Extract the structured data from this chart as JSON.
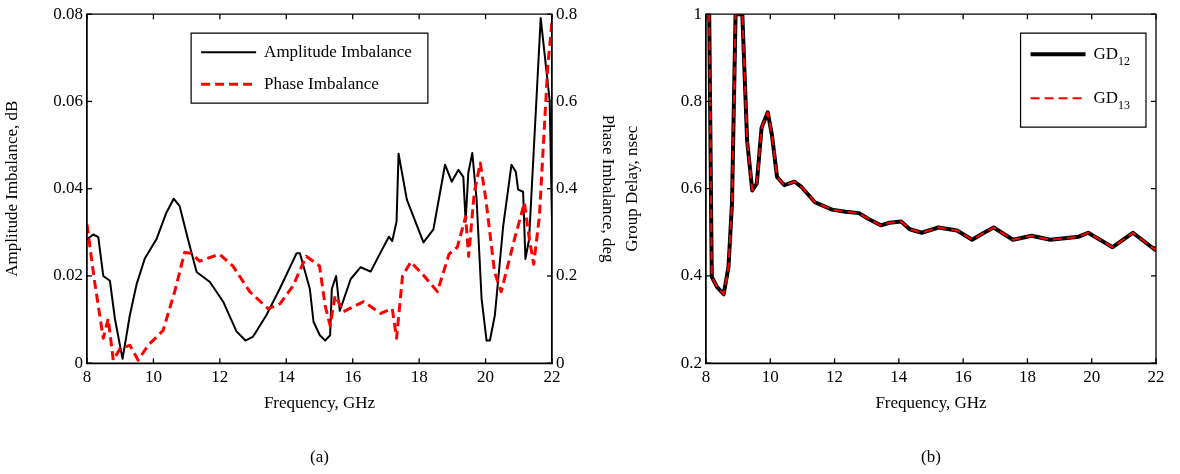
{
  "chart_data": [
    {
      "type": "line",
      "xlabel": "Frequency, GHz",
      "ylabel": "Amplitude Imbalance, dB",
      "y2label": "Phase Imbalance, deg",
      "annotations": [
        "(a)"
      ],
      "xlim": [
        8,
        22
      ],
      "xticks": [
        8,
        10,
        12,
        14,
        16,
        18,
        20,
        22
      ],
      "ylim": [
        0,
        0.08
      ],
      "yticks": [
        {
          "value": 0,
          "label": "0"
        },
        {
          "value": 0.02,
          "label": "0.02"
        },
        {
          "value": 0.04,
          "label": "0.04"
        },
        {
          "value": 0.06,
          "label": "0.06"
        },
        {
          "value": 0.08,
          "label": "0.08"
        }
      ],
      "y2lim": [
        0,
        0.8
      ],
      "y2ticks": [
        {
          "value": 0,
          "label": "0"
        },
        {
          "value": 0.2,
          "label": "0.2"
        },
        {
          "value": 0.4,
          "label": "0.4"
        },
        {
          "value": 0.6,
          "label": "0.6"
        },
        {
          "value": 0.8,
          "label": "0.8"
        }
      ],
      "legend": "top",
      "marker": "none",
      "grid": false,
      "series": [
        {
          "name": "Amplitude Imbalance",
          "color": "#000000",
          "line_style": "solid",
          "x": [
            8.0,
            8.19,
            8.34,
            8.49,
            8.69,
            8.84,
            9.07,
            9.29,
            9.49,
            9.74,
            10.09,
            10.39,
            10.61,
            10.79,
            11.04,
            11.3,
            11.7,
            12.1,
            12.5,
            12.77,
            13.0,
            13.4,
            13.8,
            14.31,
            14.41,
            14.71,
            14.82,
            15.01,
            15.17,
            15.32,
            15.37,
            15.5,
            15.61,
            15.94,
            16.24,
            16.54,
            16.84,
            17.09,
            17.19,
            17.32,
            17.38,
            17.63,
            18.13,
            18.43,
            18.78,
            18.98,
            19.18,
            19.33,
            19.4,
            19.48,
            19.6,
            19.73,
            19.88,
            20.03,
            20.13,
            20.28,
            20.53,
            20.78,
            20.91,
            20.98,
            21.13,
            21.2,
            21.31,
            21.66,
            21.93,
            22.0
          ],
          "values": [
            0.0284,
            0.0295,
            0.0289,
            0.02,
            0.0189,
            0.0102,
            0.001,
            0.011,
            0.018,
            0.024,
            0.0284,
            0.0345,
            0.0377,
            0.036,
            0.0284,
            0.0209,
            0.0186,
            0.0141,
            0.0073,
            0.0052,
            0.0061,
            0.011,
            0.017,
            0.0252,
            0.0252,
            0.017,
            0.0095,
            0.0064,
            0.0052,
            0.0064,
            0.017,
            0.02,
            0.012,
            0.0193,
            0.022,
            0.021,
            0.0254,
            0.029,
            0.028,
            0.0325,
            0.048,
            0.0375,
            0.0277,
            0.0307,
            0.0455,
            0.0416,
            0.0443,
            0.0427,
            0.0325,
            0.0436,
            0.0482,
            0.0375,
            0.0148,
            0.0052,
            0.0052,
            0.011,
            0.0314,
            0.0455,
            0.0439,
            0.0398,
            0.0393,
            0.0239,
            0.0284,
            0.0791,
            0.0602,
            0.0323
          ]
        },
        {
          "name": "Phase Imbalance",
          "color": "#ff0000",
          "line_style": "dashed",
          "axis": "y2",
          "x": [
            8.0,
            8.23,
            8.49,
            8.64,
            8.79,
            9.0,
            9.29,
            9.54,
            9.84,
            10.29,
            10.64,
            10.94,
            11.14,
            11.39,
            11.99,
            12.39,
            12.9,
            13.45,
            13.81,
            14.2,
            14.6,
            15.0,
            15.17,
            15.32,
            15.47,
            15.72,
            16.33,
            16.84,
            17.19,
            17.32,
            17.5,
            17.75,
            18.15,
            18.55,
            18.9,
            19.15,
            19.4,
            19.49,
            19.66,
            19.84,
            20.01,
            20.27,
            20.47,
            20.87,
            21.17,
            21.32,
            21.45,
            21.62,
            21.87,
            22.0
          ],
          "values": [
            0.318,
            0.186,
            0.057,
            0.102,
            0.007,
            0.034,
            0.041,
            0.007,
            0.041,
            0.075,
            0.164,
            0.254,
            0.252,
            0.234,
            0.25,
            0.223,
            0.164,
            0.125,
            0.136,
            0.177,
            0.245,
            0.223,
            0.132,
            0.086,
            0.155,
            0.118,
            0.141,
            0.114,
            0.125,
            0.057,
            0.2,
            0.232,
            0.2,
            0.164,
            0.25,
            0.266,
            0.336,
            0.245,
            0.391,
            0.459,
            0.375,
            0.209,
            0.164,
            0.284,
            0.368,
            0.284,
            0.227,
            0.336,
            0.677,
            0.784
          ]
        }
      ]
    },
    {
      "type": "line",
      "xlabel": "Frequency, GHz",
      "ylabel": "Group Delay, nsec",
      "annotations": [
        "(b)"
      ],
      "xlim": [
        8,
        22
      ],
      "xticks": [
        8,
        10,
        12,
        14,
        16,
        18,
        20,
        22
      ],
      "ylim": [
        0.2,
        1
      ],
      "yticks": [
        0.2,
        0.4,
        0.6,
        0.8,
        1
      ],
      "legend": "top right",
      "marker": "none",
      "grid": false,
      "series": [
        {
          "name": "GD$_{12}$",
          "color": "#000000",
          "line_style": "solid",
          "x": [
            8.07,
            8.1,
            8.18,
            8.34,
            8.55,
            8.7,
            8.81,
            8.92,
            9.13,
            9.28,
            9.44,
            9.58,
            9.73,
            9.92,
            10.05,
            10.21,
            10.44,
            10.76,
            10.97,
            11.39,
            11.92,
            12.34,
            12.76,
            13.07,
            13.44,
            13.71,
            14.07,
            14.34,
            14.71,
            15.23,
            15.81,
            16.28,
            16.65,
            16.95,
            17.55,
            18.13,
            18.71,
            19.6,
            19.89,
            20.65,
            21.28,
            21.97,
            22.0
          ],
          "values": [
            1,
            1,
            0.398,
            0.375,
            0.358,
            0.421,
            0.569,
            1,
            1,
            0.709,
            0.596,
            0.612,
            0.74,
            0.775,
            0.724,
            0.627,
            0.608,
            0.616,
            0.604,
            0.569,
            0.552,
            0.547,
            0.544,
            0.53,
            0.516,
            0.522,
            0.525,
            0.507,
            0.499,
            0.511,
            0.504,
            0.483,
            0.499,
            0.511,
            0.483,
            0.492,
            0.483,
            0.49,
            0.499,
            0.466,
            0.499,
            0.46,
            0.467
          ]
        },
        {
          "name": "GD$_{13}$",
          "color": "#ff0000",
          "line_style": "dashed",
          "x": [
            8.07,
            8.1,
            8.18,
            8.34,
            8.55,
            8.7,
            8.81,
            8.92,
            9.13,
            9.28,
            9.44,
            9.58,
            9.73,
            9.92,
            10.05,
            10.21,
            10.44,
            10.76,
            10.97,
            11.39,
            11.92,
            12.34,
            12.76,
            13.07,
            13.44,
            13.71,
            14.07,
            14.34,
            14.71,
            15.23,
            15.81,
            16.28,
            16.65,
            16.95,
            17.55,
            18.13,
            18.71,
            19.6,
            19.89,
            20.65,
            21.28,
            21.97,
            22.0
          ],
          "values": [
            1,
            1,
            0.398,
            0.375,
            0.358,
            0.421,
            0.569,
            1,
            1,
            0.709,
            0.596,
            0.612,
            0.74,
            0.775,
            0.724,
            0.627,
            0.608,
            0.616,
            0.604,
            0.569,
            0.552,
            0.547,
            0.544,
            0.53,
            0.516,
            0.522,
            0.525,
            0.507,
            0.499,
            0.511,
            0.504,
            0.483,
            0.499,
            0.511,
            0.483,
            0.492,
            0.483,
            0.49,
            0.499,
            0.466,
            0.499,
            0.46,
            0.467
          ]
        }
      ]
    }
  ]
}
